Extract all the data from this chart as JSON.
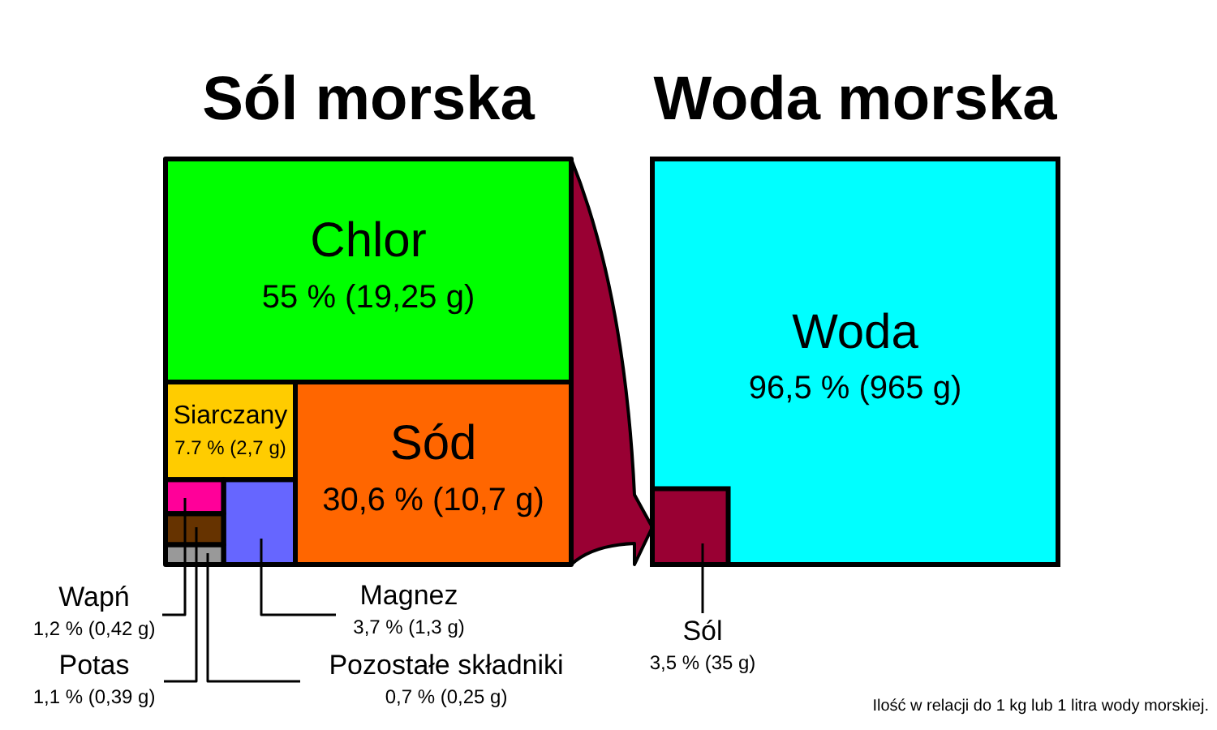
{
  "chart_data": [
    {
      "type": "other",
      "title": "Sól morska",
      "categories": [
        "Chlor",
        "Sód",
        "Siarczany",
        "Magnez",
        "Wapń",
        "Potas",
        "Pozostałe składniki"
      ],
      "values": [
        55,
        30.6,
        7.7,
        3.7,
        1.2,
        1.1,
        0.7
      ],
      "value_labels": [
        "55 % (19,25 g)",
        "30,6 % (10,7 g)",
        "7.7 % (2,7 g)",
        "3,7 % (1,3 g)",
        "1,2 % (0,42 g)",
        "1,1 % (0,39 g)",
        "0,7 % (0,25 g)"
      ],
      "colors": [
        "#00ff00",
        "#ff6600",
        "#ffcc00",
        "#6666ff",
        "#ff0099",
        "#663300",
        "#999999"
      ]
    },
    {
      "type": "other",
      "title": "Woda morska",
      "categories": [
        "Woda",
        "Sól"
      ],
      "values": [
        96.5,
        3.5
      ],
      "value_labels": [
        "96,5 % (965 g)",
        "3,5 % (35 g)"
      ],
      "colors": [
        "#00ffff",
        "#990033"
      ],
      "annotations": [
        "Ilość w relacji do 1 kg lub 1 litra wody morskiej."
      ]
    }
  ]
}
